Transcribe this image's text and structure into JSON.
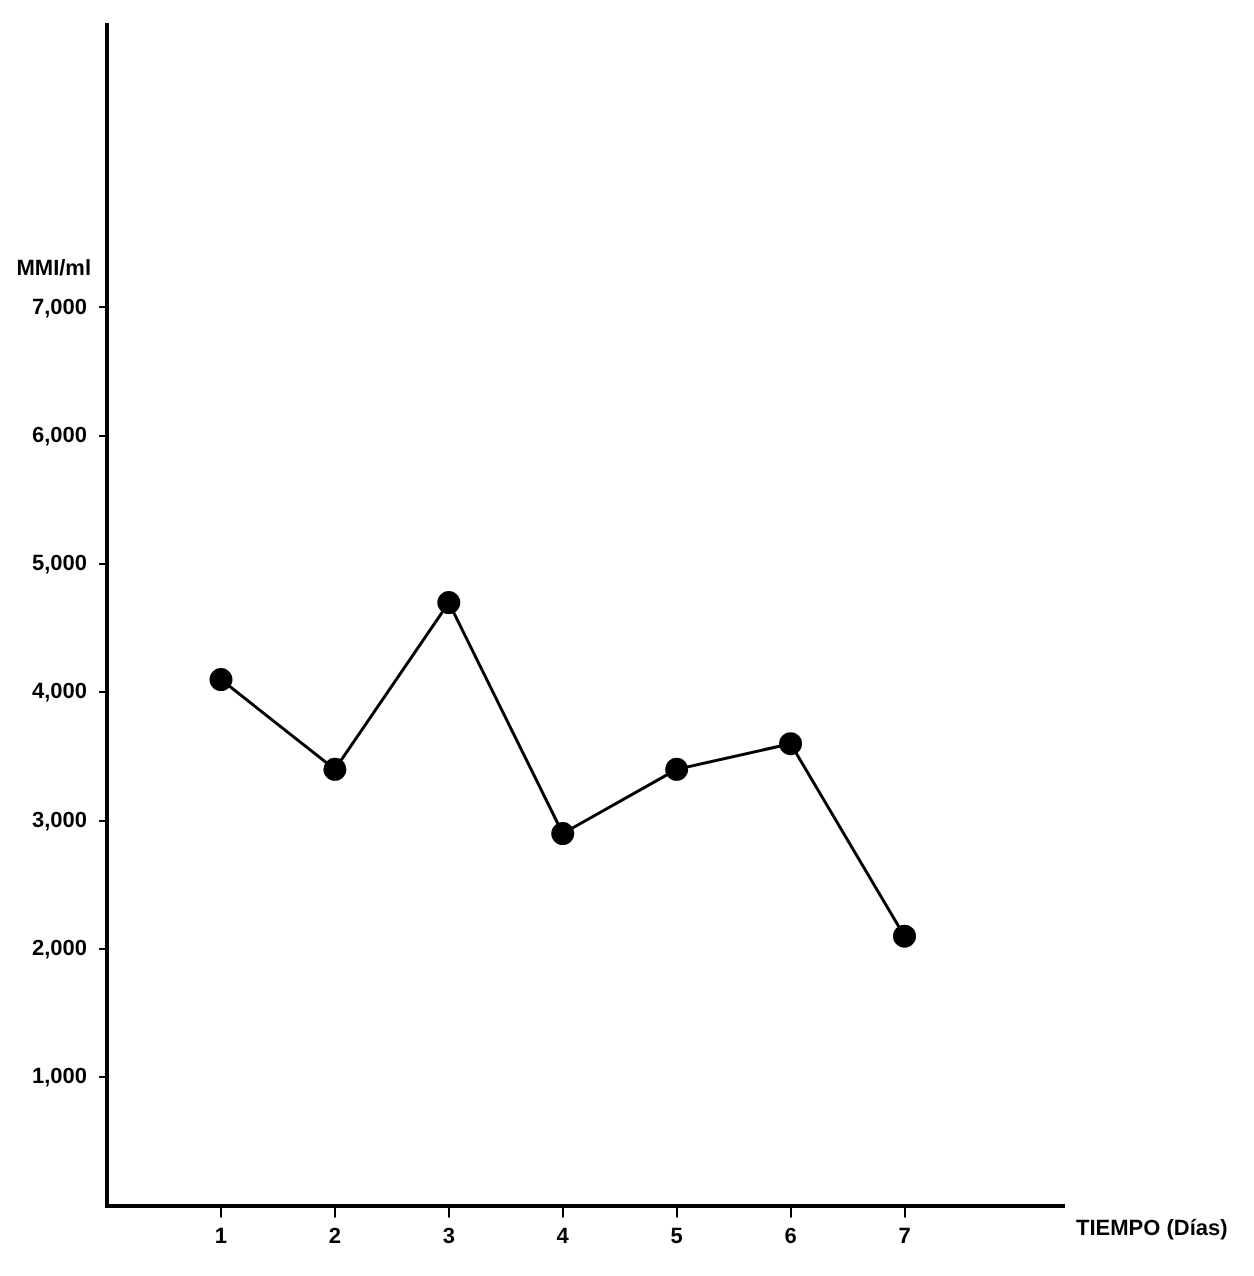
{
  "chart_data": {
    "type": "line",
    "xlabel": "TIEMPO (Días)",
    "ylabel": "MMI/ml",
    "x": [
      1,
      2,
      3,
      4,
      5,
      6,
      7
    ],
    "values": [
      4100,
      3400,
      4700,
      2900,
      3400,
      3600,
      2100
    ],
    "color": "#000000",
    "marker": "circle",
    "line_style": "solid",
    "grid": false,
    "legend": false,
    "xlim": [
      0,
      8.4
    ],
    "xticks": [
      1,
      2,
      3,
      4,
      5,
      6,
      7
    ],
    "ylim": [
      0,
      9200
    ],
    "yticks": [
      {
        "value": 1000,
        "label": "1,000"
      },
      {
        "value": 2000,
        "label": "2,000"
      },
      {
        "value": 3000,
        "label": "3,000"
      },
      {
        "value": 4000,
        "label": "4,000"
      },
      {
        "value": 5000,
        "label": "5,000"
      },
      {
        "value": 6000,
        "label": "6,000"
      },
      {
        "value": 7000,
        "label": "7,000"
      }
    ]
  }
}
